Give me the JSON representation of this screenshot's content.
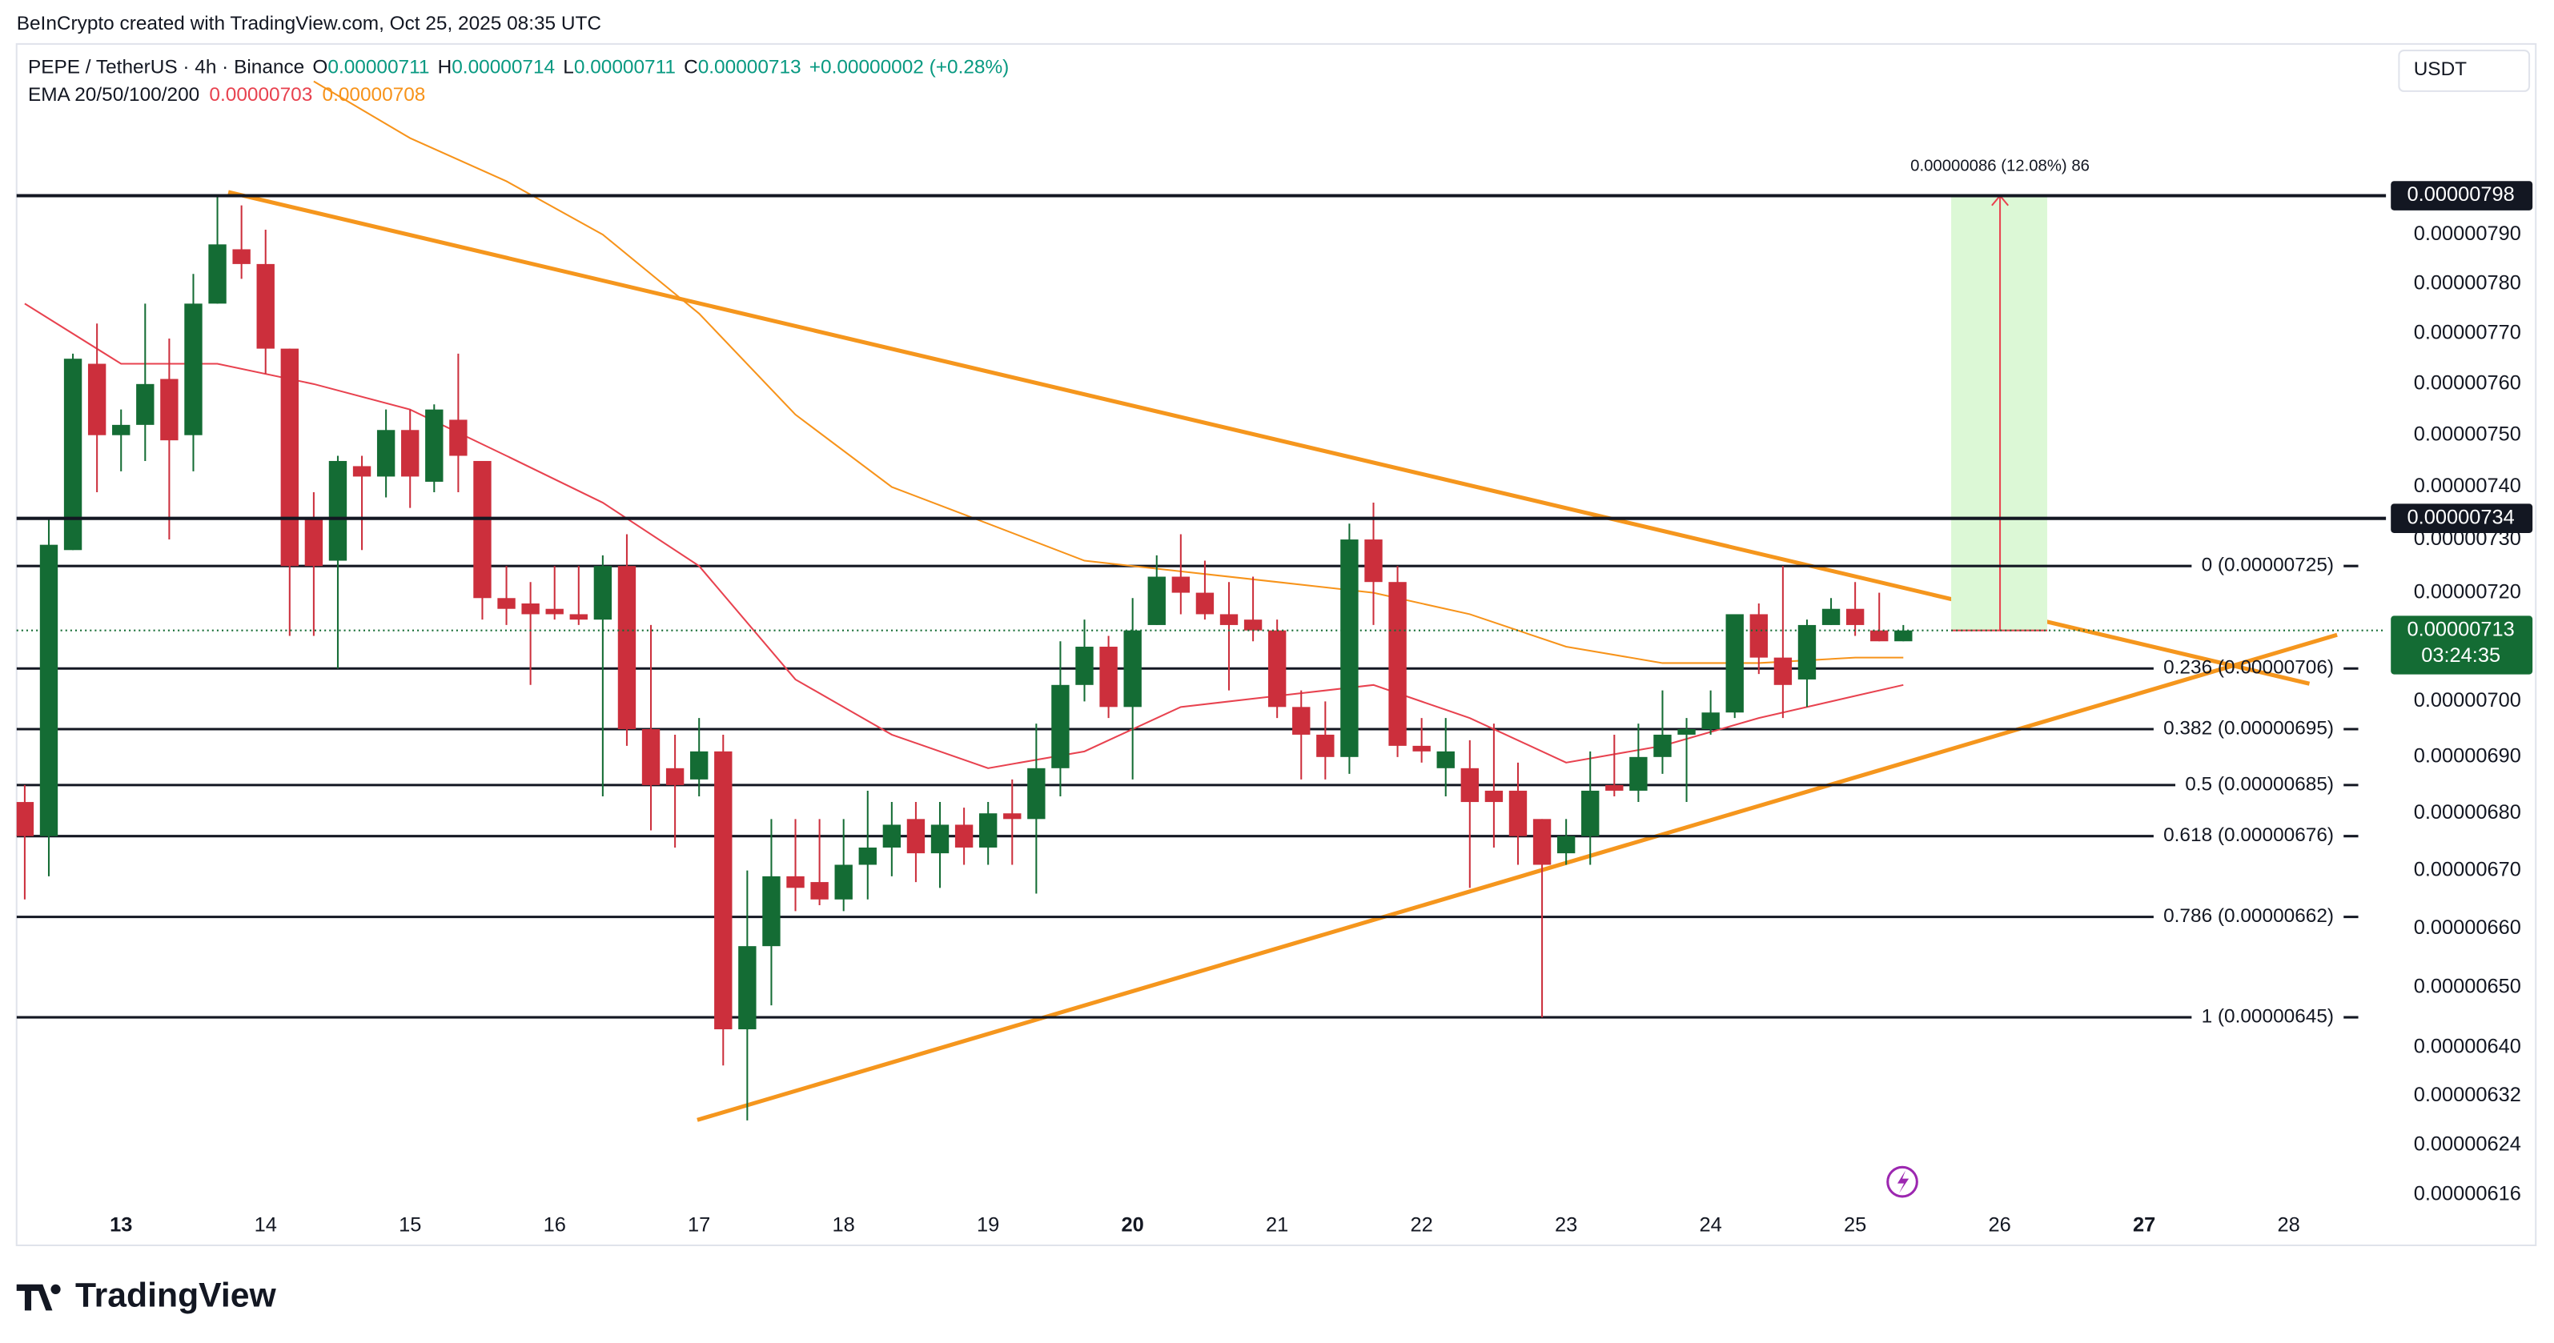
{
  "header": {
    "credit": "BeInCrypto created with TradingView.com, Oct 25, 2025 08:35 UTC",
    "currency": "USDT",
    "logo": "TradingView"
  },
  "legend": {
    "symbol": "PEPE / TetherUS · 4h · Binance",
    "open_label": "O",
    "open": "0.00000711",
    "high_label": "H",
    "high": "0.00000714",
    "low_label": "L",
    "low": "0.00000711",
    "close_label": "C",
    "close": "0.00000713",
    "change": "+0.00000002 (+0.28%)",
    "ema_label": "EMA 20/50/100/200",
    "ema20": "0.00000703",
    "ema50": "0.00000708"
  },
  "chart_data": {
    "type": "candlestick",
    "log_scale": true,
    "up_color": "#146c34",
    "down_color": "#cc2f3c",
    "candles": {
      "open": [
        6.82e-06,
        6.76e-06,
        7.28e-06,
        7.64e-06,
        7.5e-06,
        7.52e-06,
        7.61e-06,
        7.5e-06,
        7.76e-06,
        7.87e-06,
        7.84e-06,
        7.67e-06,
        7.34e-06,
        7.26e-06,
        7.44e-06,
        7.42e-06,
        7.51e-06,
        7.41e-06,
        7.53e-06,
        7.45e-06,
        7.19e-06,
        7.18e-06,
        7.17e-06,
        7.16e-06,
        7.15e-06,
        7.25e-06,
        6.95e-06,
        6.88e-06,
        6.86e-06,
        6.91e-06,
        6.43e-06,
        6.57e-06,
        6.69e-06,
        6.68e-06,
        6.65e-06,
        6.71e-06,
        6.74e-06,
        6.79e-06,
        6.73e-06,
        6.78e-06,
        6.74e-06,
        6.8e-06,
        6.79e-06,
        6.88e-06,
        7.03e-06,
        7.1e-06,
        6.99e-06,
        7.14e-06,
        7.23e-06,
        7.2e-06,
        7.16e-06,
        7.15e-06,
        7.13e-06,
        6.99e-06,
        6.94e-06,
        6.9e-06,
        7.3e-06,
        7.22e-06,
        6.92e-06,
        6.88e-06,
        6.88e-06,
        6.84e-06,
        6.84e-06,
        6.79e-06,
        6.73e-06,
        6.76e-06,
        6.85e-06,
        6.84e-06,
        6.9e-06,
        6.94e-06,
        6.95e-06,
        6.98e-06,
        7.16e-06,
        7.08e-06,
        7.04e-06,
        7.14e-06,
        7.17e-06,
        7.13e-06,
        7.11e-06
      ],
      "high": [
        6.85e-06,
        7.34e-06,
        7.66e-06,
        7.72e-06,
        7.55e-06,
        7.76e-06,
        7.69e-06,
        7.82e-06,
        7.98e-06,
        7.96e-06,
        7.91e-06,
        7.67e-06,
        7.39e-06,
        7.46e-06,
        7.46e-06,
        7.55e-06,
        7.55e-06,
        7.56e-06,
        7.66e-06,
        7.45e-06,
        7.25e-06,
        7.22e-06,
        7.25e-06,
        7.25e-06,
        7.27e-06,
        7.31e-06,
        7.14e-06,
        6.94e-06,
        6.97e-06,
        6.94e-06,
        6.7e-06,
        6.79e-06,
        6.79e-06,
        6.79e-06,
        6.79e-06,
        6.84e-06,
        6.82e-06,
        6.82e-06,
        6.82e-06,
        6.81e-06,
        6.82e-06,
        6.86e-06,
        6.96e-06,
        7.11e-06,
        7.15e-06,
        7.12e-06,
        7.19e-06,
        7.27e-06,
        7.31e-06,
        7.26e-06,
        7.22e-06,
        7.23e-06,
        7.15e-06,
        7.02e-06,
        7e-06,
        7.33e-06,
        7.37e-06,
        7.25e-06,
        6.97e-06,
        6.97e-06,
        6.93e-06,
        6.96e-06,
        6.89e-06,
        6.79e-06,
        6.79e-06,
        6.91e-06,
        6.94e-06,
        6.96e-06,
        7.02e-06,
        6.97e-06,
        7.02e-06,
        7.16e-06,
        7.18e-06,
        7.25e-06,
        7.15e-06,
        7.19e-06,
        7.22e-06,
        7.2e-06,
        7.14e-06
      ],
      "low": [
        6.65e-06,
        6.69e-06,
        7.28e-06,
        7.39e-06,
        7.43e-06,
        7.45e-06,
        7.3e-06,
        7.43e-06,
        7.76e-06,
        7.81e-06,
        7.62e-06,
        7.12e-06,
        7.12e-06,
        7.06e-06,
        7.28e-06,
        7.38e-06,
        7.36e-06,
        7.39e-06,
        7.39e-06,
        7.15e-06,
        7.14e-06,
        7.03e-06,
        7.15e-06,
        7.14e-06,
        6.83e-06,
        6.92e-06,
        6.77e-06,
        6.74e-06,
        6.83e-06,
        6.37e-06,
        6.28e-06,
        6.47e-06,
        6.63e-06,
        6.64e-06,
        6.63e-06,
        6.65e-06,
        6.69e-06,
        6.68e-06,
        6.67e-06,
        6.71e-06,
        6.71e-06,
        6.71e-06,
        6.66e-06,
        6.83e-06,
        7e-06,
        6.97e-06,
        6.86e-06,
        7.14e-06,
        7.16e-06,
        7.15e-06,
        7.02e-06,
        7.11e-06,
        6.97e-06,
        6.86e-06,
        6.86e-06,
        6.87e-06,
        7.14e-06,
        6.9e-06,
        6.89e-06,
        6.83e-06,
        6.67e-06,
        6.74e-06,
        6.71e-06,
        6.45e-06,
        6.71e-06,
        6.71e-06,
        6.83e-06,
        6.82e-06,
        6.87e-06,
        6.82e-06,
        6.94e-06,
        6.97e-06,
        7.05e-06,
        6.97e-06,
        6.99e-06,
        7.14e-06,
        7.12e-06,
        7.11e-06,
        7.11e-06
      ],
      "close": [
        6.76e-06,
        7.29e-06,
        7.65e-06,
        7.5e-06,
        7.52e-06,
        7.6e-06,
        7.49e-06,
        7.76e-06,
        7.88e-06,
        7.84e-06,
        7.67e-06,
        7.25e-06,
        7.25e-06,
        7.45e-06,
        7.42e-06,
        7.51e-06,
        7.42e-06,
        7.55e-06,
        7.46e-06,
        7.19e-06,
        7.17e-06,
        7.16e-06,
        7.16e-06,
        7.15e-06,
        7.25e-06,
        6.95e-06,
        6.85e-06,
        6.85e-06,
        6.91e-06,
        6.43e-06,
        6.57e-06,
        6.69e-06,
        6.67e-06,
        6.65e-06,
        6.71e-06,
        6.74e-06,
        6.78e-06,
        6.73e-06,
        6.78e-06,
        6.74e-06,
        6.8e-06,
        6.79e-06,
        6.88e-06,
        7.03e-06,
        7.1e-06,
        6.99e-06,
        7.13e-06,
        7.23e-06,
        7.2e-06,
        7.16e-06,
        7.14e-06,
        7.13e-06,
        6.99e-06,
        6.94e-06,
        6.9e-06,
        7.3e-06,
        7.22e-06,
        6.92e-06,
        6.91e-06,
        6.91e-06,
        6.82e-06,
        6.82e-06,
        6.76e-06,
        6.71e-06,
        6.76e-06,
        6.84e-06,
        6.84e-06,
        6.9e-06,
        6.94e-06,
        6.95e-06,
        6.98e-06,
        7.16e-06,
        7.08e-06,
        7.03e-06,
        7.14e-06,
        7.17e-06,
        7.14e-06,
        7.11e-06,
        7.13e-06
      ]
    },
    "ema": [
      {
        "color": "#e8424f",
        "x": [
          0,
          4,
          8,
          12,
          16,
          20,
          24,
          28,
          32,
          36,
          40,
          44,
          48,
          52,
          56,
          60,
          64,
          68,
          72,
          76,
          78
        ],
        "values": [
          7.76e-06,
          7.64e-06,
          7.64e-06,
          7.6e-06,
          7.55e-06,
          7.46e-06,
          7.37e-06,
          7.25e-06,
          7.04e-06,
          6.94e-06,
          6.88e-06,
          6.91e-06,
          6.99e-06,
          7.01e-06,
          7.03e-06,
          6.97e-06,
          6.89e-06,
          6.92e-06,
          6.97e-06,
          7.01e-06,
          7.03e-06
        ]
      },
      {
        "color": "#f7931a",
        "x": [
          12,
          16,
          20,
          24,
          28,
          32,
          36,
          40,
          44,
          48,
          52,
          56,
          60,
          64,
          68,
          72,
          76,
          78
        ],
        "values": [
          8.22e-06,
          8.1e-06,
          8.01e-06,
          7.9e-06,
          7.74e-06,
          7.54e-06,
          7.4e-06,
          7.33e-06,
          7.26e-06,
          7.24e-06,
          7.22e-06,
          7.2e-06,
          7.16e-06,
          7.1e-06,
          7.07e-06,
          7.07e-06,
          7.08e-06,
          7.08e-06
        ]
      }
    ],
    "ylim": [
      6.08e-06,
      8.3e-06
    ],
    "yticks": [
      {
        "value": 7.9e-06,
        "label": "0.00000790"
      },
      {
        "value": 7.8e-06,
        "label": "0.00000780"
      },
      {
        "value": 7.7e-06,
        "label": "0.00000770"
      },
      {
        "value": 7.6e-06,
        "label": "0.00000760"
      },
      {
        "value": 7.5e-06,
        "label": "0.00000750"
      },
      {
        "value": 7.4e-06,
        "label": "0.00000740"
      },
      {
        "value": 7.3e-06,
        "label": "0.00000730"
      },
      {
        "value": 7.2e-06,
        "label": "0.00000720"
      },
      {
        "value": 7e-06,
        "label": "0.00000700"
      },
      {
        "value": 6.9e-06,
        "label": "0.00000690"
      },
      {
        "value": 6.8e-06,
        "label": "0.00000680"
      },
      {
        "value": 6.7e-06,
        "label": "0.00000670"
      },
      {
        "value": 6.6e-06,
        "label": "0.00000660"
      },
      {
        "value": 6.5e-06,
        "label": "0.00000650"
      },
      {
        "value": 6.4e-06,
        "label": "0.00000640"
      },
      {
        "value": 6.32e-06,
        "label": "0.00000632"
      },
      {
        "value": 6.24e-06,
        "label": "0.00000624"
      },
      {
        "value": 6.16e-06,
        "label": "0.00000616"
      }
    ],
    "x_labels": [
      "13",
      "14",
      "15",
      "16",
      "17",
      "18",
      "19",
      "20",
      "21",
      "22",
      "23",
      "24",
      "25",
      "26",
      "27",
      "28"
    ],
    "fib_levels": [
      {
        "value": 7.25e-06,
        "label": "0 (0.00000725)"
      },
      {
        "value": 7.06e-06,
        "label": "0.236 (0.00000706)"
      },
      {
        "value": 6.95e-06,
        "label": "0.382 (0.00000695)"
      },
      {
        "value": 6.85e-06,
        "label": "0.5 (0.00000685)"
      },
      {
        "value": 6.76e-06,
        "label": "0.618 (0.00000676)"
      },
      {
        "value": 6.62e-06,
        "label": "0.786 (0.00000662)"
      },
      {
        "value": 6.45e-06,
        "label": "1 (0.00000645)"
      }
    ],
    "price_lines": [
      {
        "value": 7.98e-06,
        "label": "0.00000798"
      },
      {
        "value": 7.34e-06,
        "label": "0.00000734"
      }
    ],
    "last_price": {
      "value": 7.13e-06,
      "label": "0.00000713",
      "countdown": "03:24:35",
      "color": "#146c34"
    },
    "measure": {
      "label": "0.00000086 (12.08%) 86",
      "from": 7.13e-06,
      "to": 7.98e-06
    }
  }
}
